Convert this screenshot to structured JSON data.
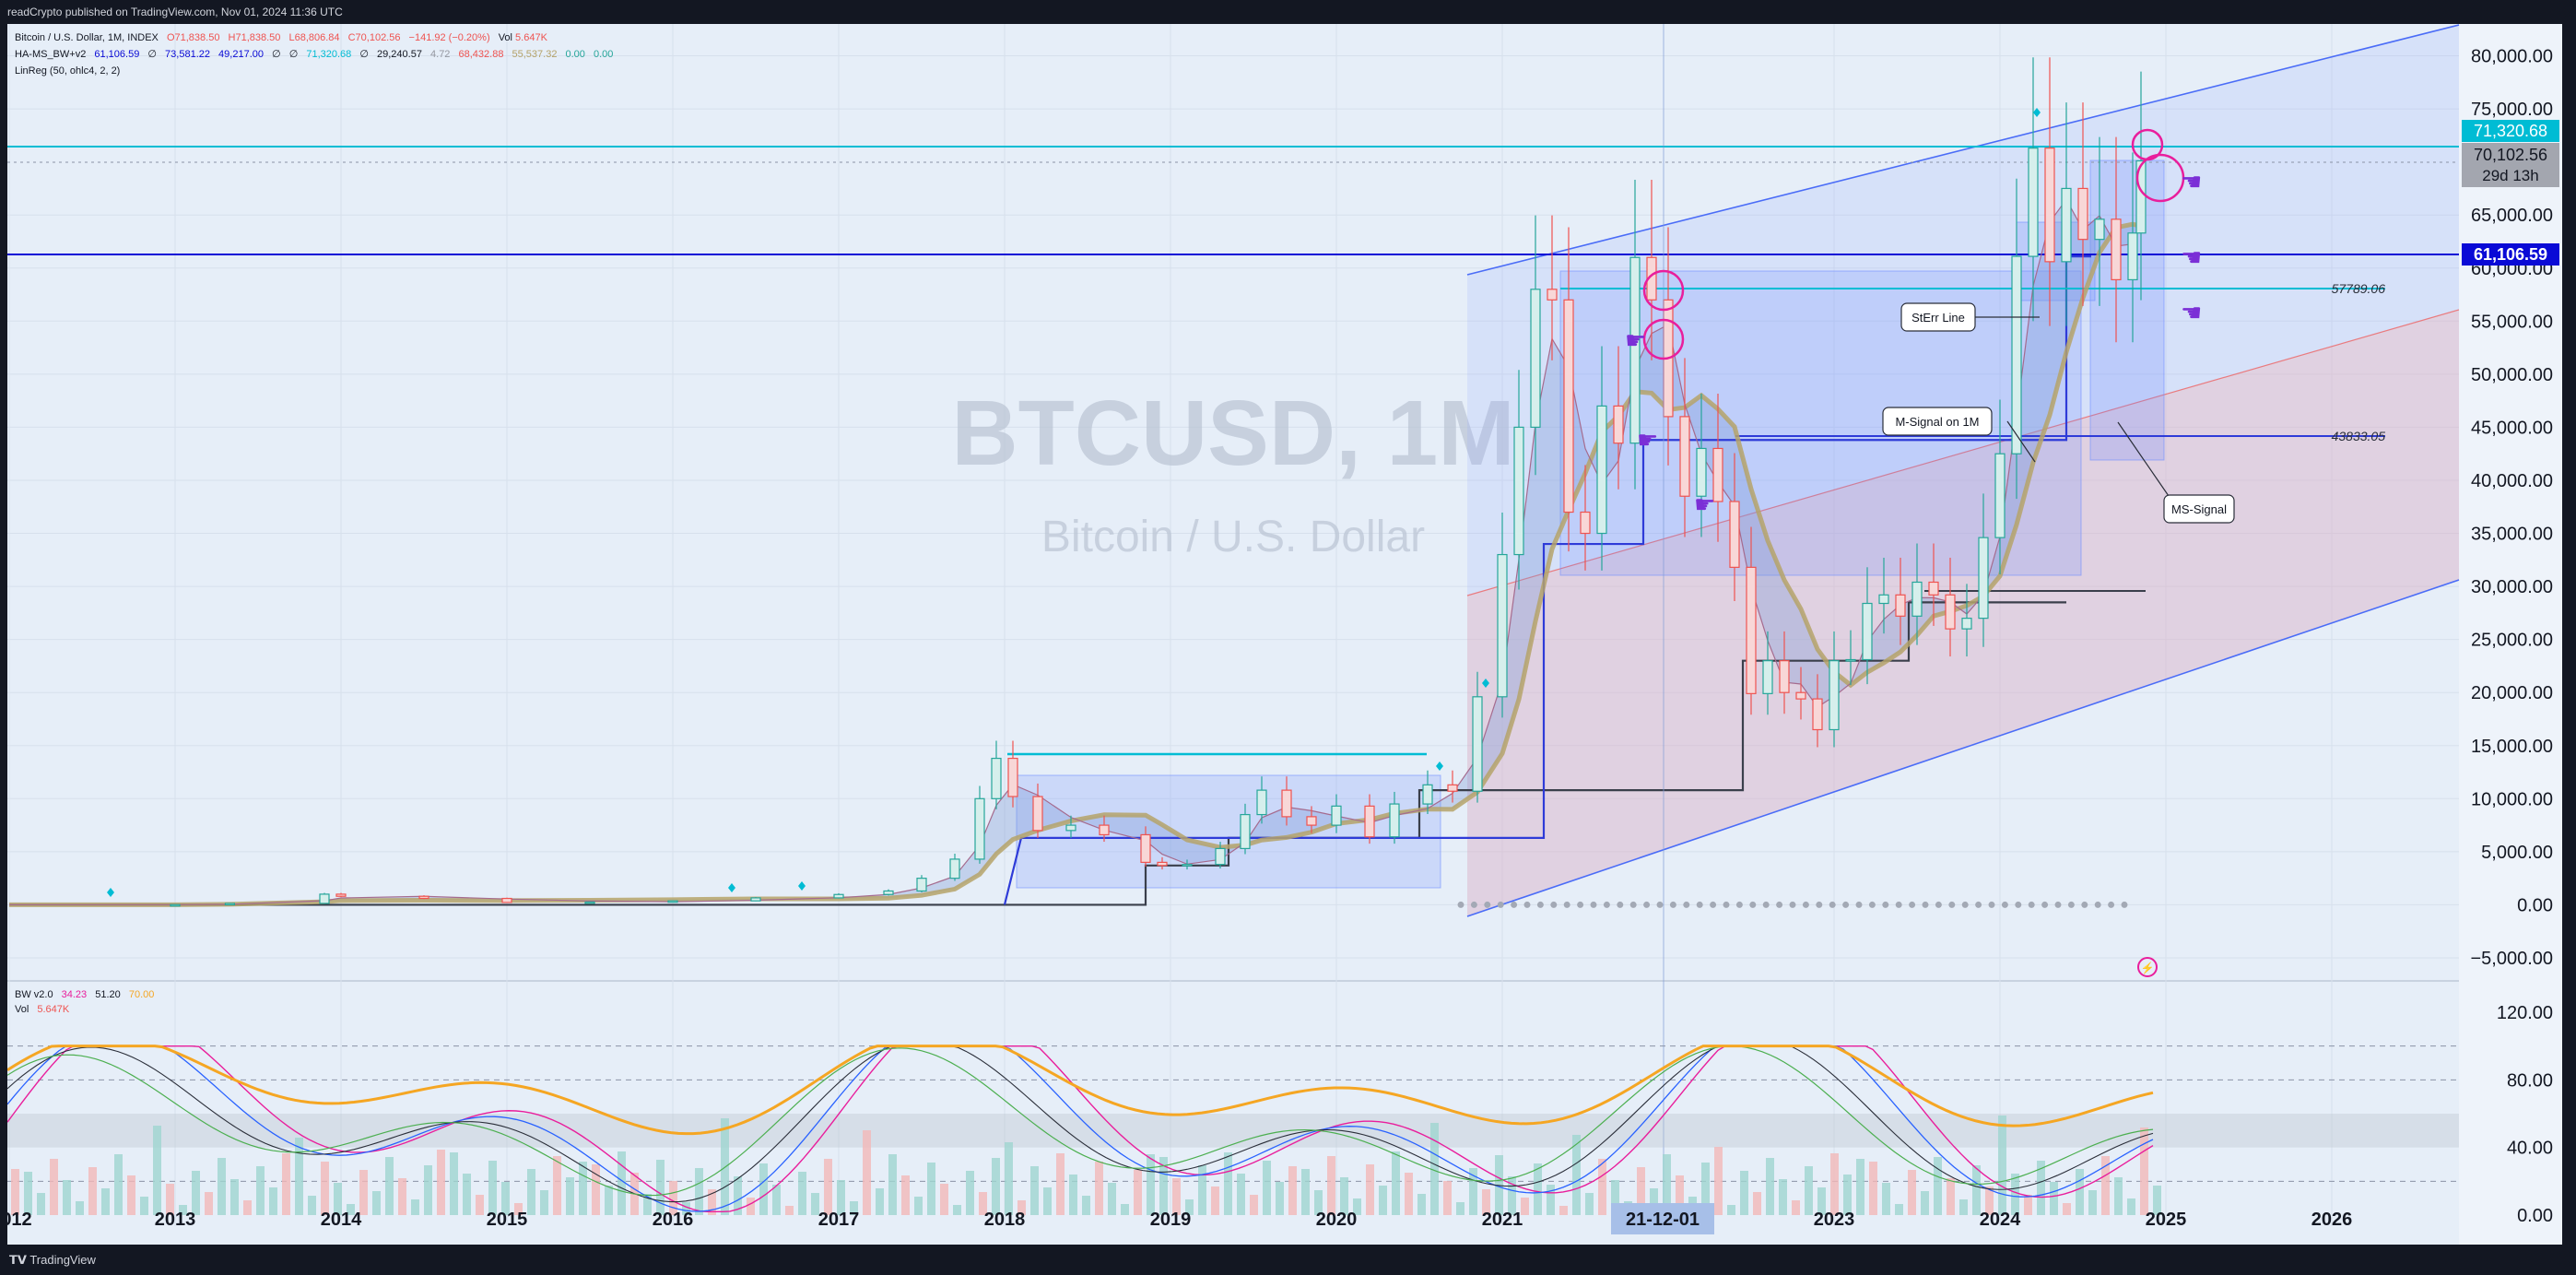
{
  "header": {
    "publisher_text": "readCrypto published on TradingView.com, Nov 01, 2024 11:36 UTC"
  },
  "footer": {
    "brand": "TradingView"
  },
  "legend": {
    "line1": {
      "symbol": "Bitcoin / U.S. Dollar, 1M, INDEX",
      "open": "O71,838.50",
      "high": "H71,838.50",
      "low": "L68,806.84",
      "close": "C70,102.56",
      "change": "−141.92 (−0.20%)",
      "vol_label": "Vol",
      "vol_value": "5.647K"
    },
    "line2": {
      "name": "HA-MS_BW+v2",
      "v1": "61,106.59",
      "sym1": "∅",
      "v2": "73,581.22",
      "v3": "49,217.00",
      "sym2": "∅",
      "sym3": "∅",
      "v4": "71,320.68",
      "sym4": "∅",
      "v5": "29,240.57",
      "v6": "4.72",
      "v7": "68,432.88",
      "v8": "55,537.32",
      "v9": "0.00",
      "v10": "0.00"
    },
    "line3": {
      "text": "LinReg (50, ohlc4, 2, 2)"
    }
  },
  "watermark": {
    "ticker": "BTCUSD, 1M",
    "name": "Bitcoin / U.S. Dollar"
  },
  "annotations": {
    "sterr": "StErr Line",
    "msignal_1m": "M-Signal on 1M",
    "msignal": "MS-Signal"
  },
  "level_labels": {
    "upper": "57789.06",
    "lower": "43833.05"
  },
  "price_badges": {
    "hl1": "71,320.68",
    "last": "70,102.56",
    "countdown": "29d 13h",
    "hl2": "61,106.59"
  },
  "lower_pane": {
    "bw_label": "BW v2.0",
    "bw_v1": "34.23",
    "bw_v2": "51.20",
    "bw_v3": "70.00",
    "vol_label": "Vol",
    "vol_value": "5.647K"
  },
  "cursor_label": "21-12-01",
  "colors": {
    "background": "#e6eef8",
    "up_candle": "#26a69a",
    "down_candle": "#ef5350",
    "hl_cyan": "#00bcd4",
    "hl_blue": "#0a0ad6",
    "channel_blue": "#4a6cf7",
    "channel_red": "#ef9a9a",
    "msignal_olive": "#b5a36a",
    "marker_magenta": "#e91e9c"
  },
  "chart_data": {
    "type": "candlestick",
    "title": "BTCUSD, 1M",
    "subtitle": "Bitcoin / U.S. Dollar",
    "x_tick_labels": [
      "012",
      "2013",
      "2014",
      "2015",
      "2016",
      "2017",
      "2018",
      "2019",
      "2020",
      "2021",
      "21-12-01",
      "2023",
      "2024",
      "2025",
      "2026"
    ],
    "y_tick_labels": [
      "80,000.00",
      "75,000.00",
      "65,000.00",
      "60,000.00",
      "55,000.00",
      "50,000.00",
      "45,000.00",
      "40,000.00",
      "35,000.00",
      "30,000.00",
      "25,000.00",
      "20,000.00",
      "15,000.00",
      "10,000.00",
      "5,000.00",
      "0.00",
      "−5,000.00"
    ],
    "ylim": [
      -7000,
      83000
    ],
    "lower_y_tick_labels": [
      "120.00",
      "80.00",
      "40.00",
      "0.00"
    ],
    "horizontal_levels": [
      {
        "name": "cyan-level",
        "value": 71320.68
      },
      {
        "name": "blue-level",
        "value": 61106.59
      },
      {
        "name": "sterr-upper",
        "value": 57789.06
      },
      {
        "name": "msignal-lower",
        "value": 43833.05
      }
    ],
    "series": [
      {
        "name": "BTCUSD",
        "points": [
          [
            2012.0,
            5
          ],
          [
            2013.0,
            13
          ],
          [
            2013.33,
            130
          ],
          [
            2013.9,
            1000
          ],
          [
            2014.0,
            800
          ],
          [
            2014.5,
            600
          ],
          [
            2015.0,
            220
          ],
          [
            2015.5,
            260
          ],
          [
            2016.0,
            370
          ],
          [
            2016.5,
            650
          ],
          [
            2017.0,
            970
          ],
          [
            2017.3,
            1300
          ],
          [
            2017.5,
            2500
          ],
          [
            2017.7,
            4300
          ],
          [
            2017.85,
            10000
          ],
          [
            2017.95,
            13800
          ],
          [
            2018.05,
            10200
          ],
          [
            2018.2,
            7000
          ],
          [
            2018.4,
            7500
          ],
          [
            2018.6,
            6600
          ],
          [
            2018.85,
            4000
          ],
          [
            2018.95,
            3700
          ],
          [
            2019.1,
            3800
          ],
          [
            2019.3,
            5300
          ],
          [
            2019.45,
            8500
          ],
          [
            2019.55,
            10800
          ],
          [
            2019.7,
            8300
          ],
          [
            2019.85,
            7500
          ],
          [
            2020.0,
            9300
          ],
          [
            2020.2,
            6400
          ],
          [
            2020.35,
            9500
          ],
          [
            2020.55,
            11300
          ],
          [
            2020.7,
            10700
          ],
          [
            2020.85,
            19600
          ],
          [
            2021.0,
            33000
          ],
          [
            2021.1,
            45000
          ],
          [
            2021.2,
            58000
          ],
          [
            2021.3,
            57000
          ],
          [
            2021.4,
            37000
          ],
          [
            2021.5,
            35000
          ],
          [
            2021.6,
            47000
          ],
          [
            2021.7,
            43500
          ],
          [
            2021.8,
            61000
          ],
          [
            2021.9,
            57000
          ],
          [
            2022.0,
            46000
          ],
          [
            2022.1,
            38500
          ],
          [
            2022.2,
            43000
          ],
          [
            2022.3,
            38000
          ],
          [
            2022.4,
            31800
          ],
          [
            2022.5,
            19900
          ],
          [
            2022.6,
            23000
          ],
          [
            2022.7,
            20000
          ],
          [
            2022.8,
            19400
          ],
          [
            2022.9,
            16500
          ],
          [
            2023.0,
            23000
          ],
          [
            2023.1,
            23100
          ],
          [
            2023.2,
            28400
          ],
          [
            2023.3,
            29200
          ],
          [
            2023.4,
            27200
          ],
          [
            2023.5,
            30400
          ],
          [
            2023.6,
            29200
          ],
          [
            2023.7,
            26000
          ],
          [
            2023.8,
            27000
          ],
          [
            2023.9,
            34600
          ],
          [
            2024.0,
            42500
          ],
          [
            2024.1,
            61100
          ],
          [
            2024.2,
            71300
          ],
          [
            2024.3,
            60600
          ],
          [
            2024.4,
            67500
          ],
          [
            2024.5,
            62700
          ],
          [
            2024.6,
            64600
          ],
          [
            2024.7,
            58900
          ],
          [
            2024.8,
            63300
          ],
          [
            2024.85,
            70100
          ]
        ]
      },
      {
        "name": "HA-MS_BW+v2",
        "values": [
          61106.59,
          73581.22,
          49217.0,
          71320.68,
          29240.57,
          4.72,
          68432.88,
          55537.32,
          0.0,
          0.0
        ]
      },
      {
        "name": "BW v2.0",
        "values": [
          34.23,
          51.2,
          70.0
        ]
      }
    ],
    "xlabel": "",
    "ylabel": ""
  }
}
